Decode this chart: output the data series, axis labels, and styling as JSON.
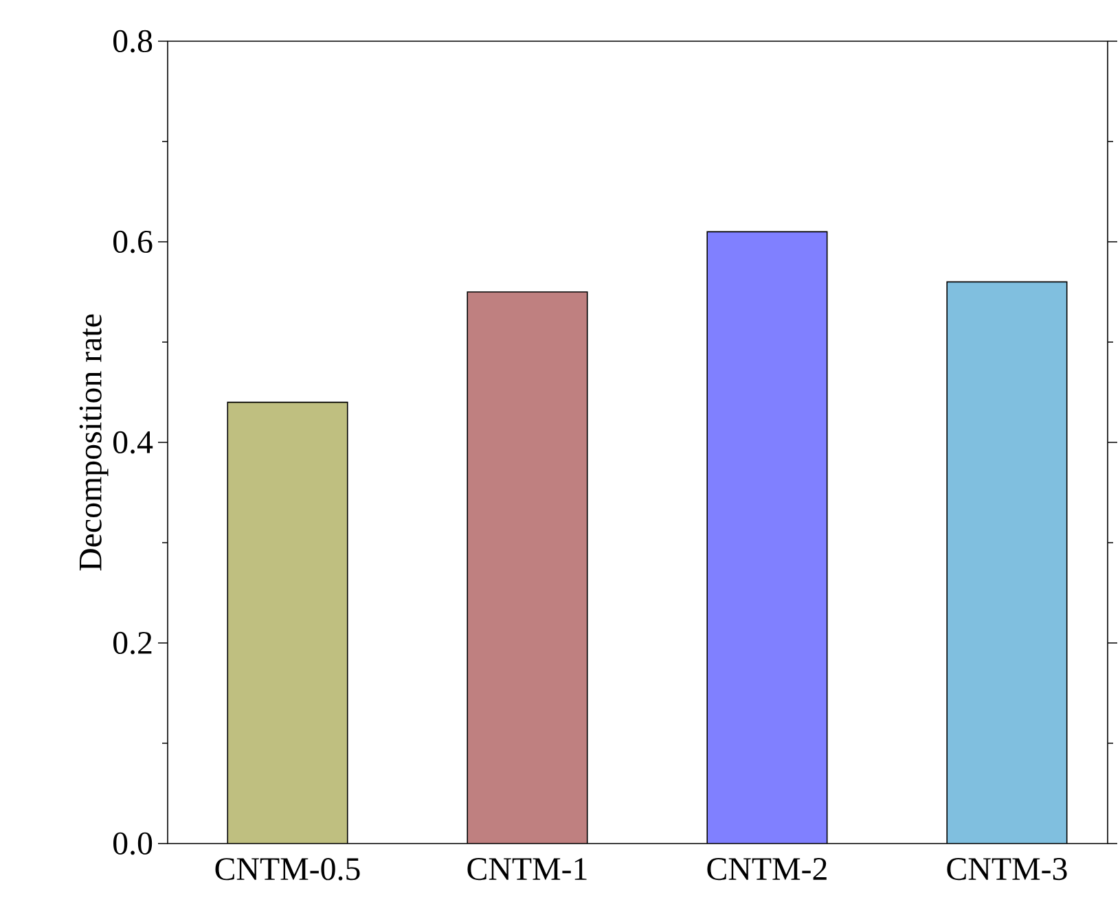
{
  "chart_data": {
    "type": "bar",
    "ylabel": "Decomposition rate",
    "categories": [
      "CNTM-0.5",
      "CNTM-1",
      "CNTM-2",
      "CNTM-3"
    ],
    "values": [
      0.44,
      0.55,
      0.61,
      0.56
    ],
    "colors": [
      "#bfbf80",
      "#bf8080",
      "#8080ff",
      "#80bfdf"
    ],
    "ylim": [
      0,
      0.8
    ],
    "yticks": [
      {
        "value": 0,
        "label": "0.0"
      },
      {
        "value": 0.2,
        "label": "0.2"
      },
      {
        "value": 0.4,
        "label": "0.4"
      },
      {
        "value": 0.6,
        "label": "0.6"
      },
      {
        "value": 0.8,
        "label": "0.8"
      }
    ],
    "grid": false
  }
}
